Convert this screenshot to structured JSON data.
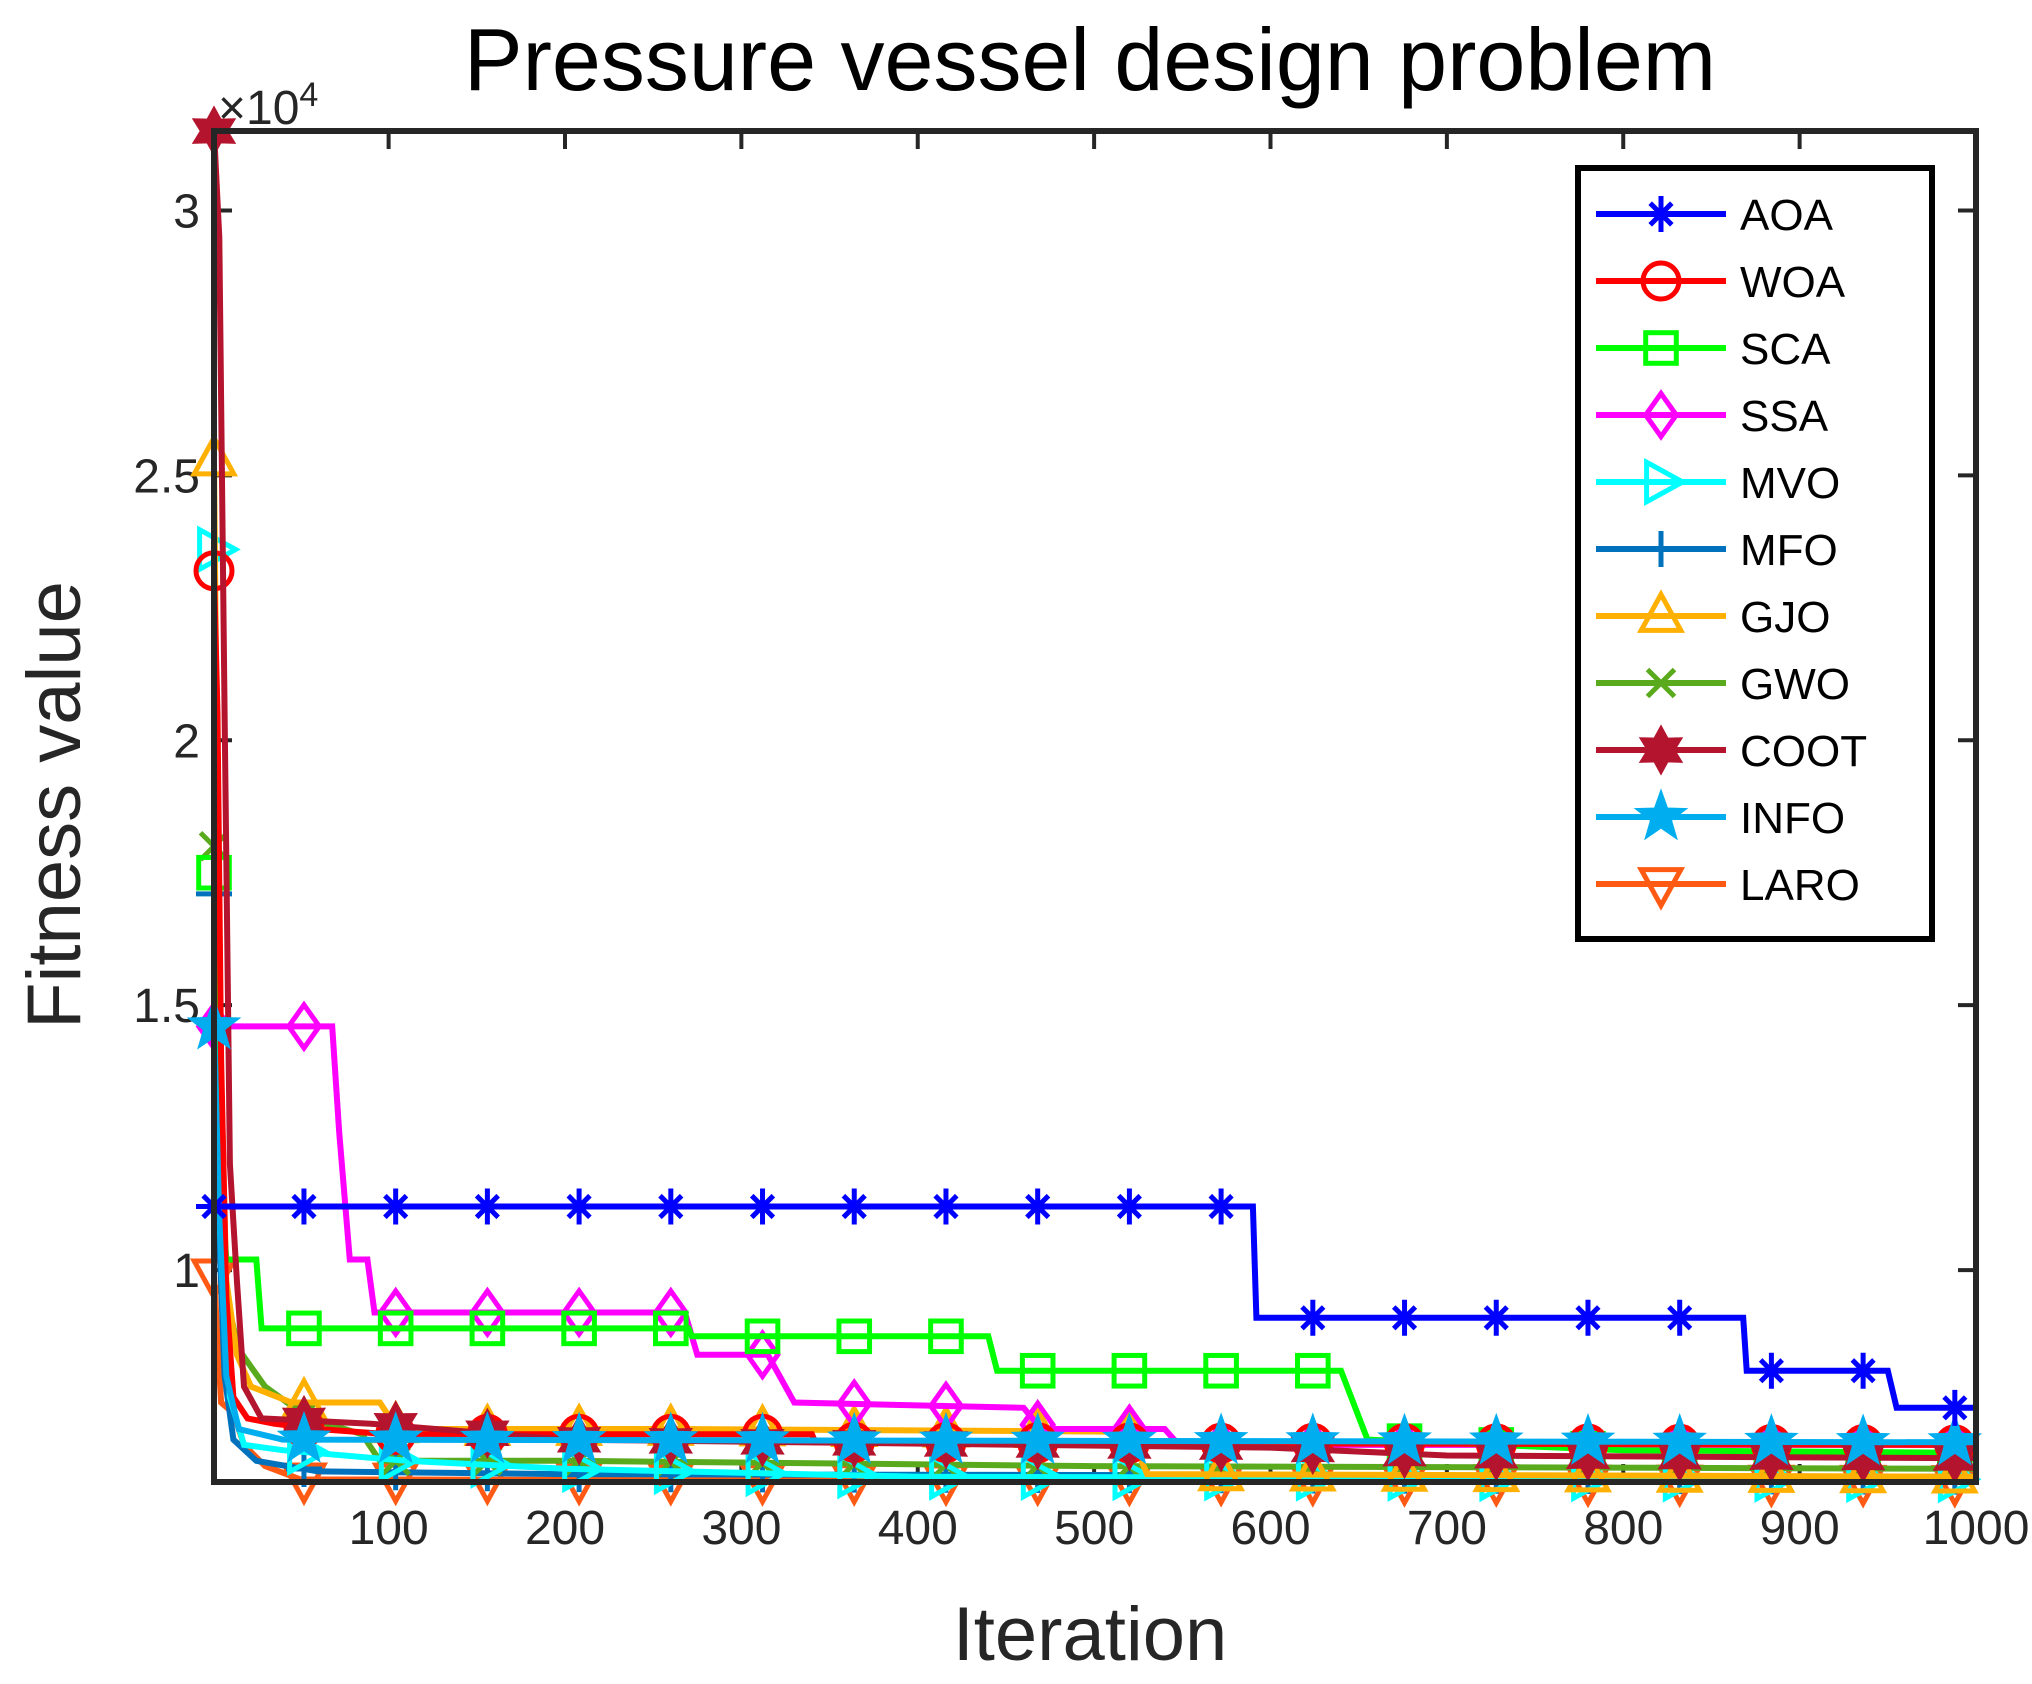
{
  "chart_data": {
    "type": "line",
    "title": "Pressure vessel design problem",
    "xlabel": "Iteration",
    "ylabel": "Fitness value",
    "xlim": [
      1,
      1000
    ],
    "ylim": [
      6000,
      31500
    ],
    "xticks": [
      100,
      200,
      300,
      400,
      500,
      600,
      700,
      800,
      900,
      1000
    ],
    "xtick_labels": [
      "100",
      "200",
      "300",
      "400",
      "500",
      "600",
      "700",
      "800",
      "900",
      "1000"
    ],
    "yticks": [
      10000,
      15000,
      20000,
      25000,
      30000
    ],
    "ytick_labels": [
      "1",
      "1.5",
      "2",
      "2.5",
      "3"
    ],
    "y_exponent_label": "×10",
    "y_exponent_power": "4",
    "legend_position": "top-right",
    "series": [
      {
        "name": "AOA",
        "color": "#0000ff",
        "marker": "asterisk",
        "points": [
          [
            1,
            11200
          ],
          [
            590,
            11200
          ],
          [
            592,
            9100
          ],
          [
            868,
            9100
          ],
          [
            870,
            8100
          ],
          [
            950,
            8100
          ],
          [
            955,
            7400
          ],
          [
            1000,
            7400
          ]
        ]
      },
      {
        "name": "WOA",
        "color": "#ff0000",
        "marker": "circle",
        "points": [
          [
            1,
            23200
          ],
          [
            3,
            20500
          ],
          [
            5,
            14000
          ],
          [
            8,
            9500
          ],
          [
            12,
            7600
          ],
          [
            20,
            7200
          ],
          [
            35,
            7100
          ],
          [
            60,
            7000
          ],
          [
            100,
            6900
          ],
          [
            340,
            6900
          ],
          [
            342,
            6750
          ],
          [
            1000,
            6700
          ]
        ]
      },
      {
        "name": "SCA",
        "color": "#00ff00",
        "marker": "square",
        "points": [
          [
            1,
            17500
          ],
          [
            4,
            12000
          ],
          [
            8,
            10200
          ],
          [
            25,
            10200
          ],
          [
            28,
            8900
          ],
          [
            270,
            8900
          ],
          [
            272,
            8750
          ],
          [
            440,
            8750
          ],
          [
            445,
            8100
          ],
          [
            640,
            8100
          ],
          [
            655,
            6800
          ],
          [
            800,
            6600
          ],
          [
            1000,
            6550
          ]
        ]
      },
      {
        "name": "SSA",
        "color": "#ff00ff",
        "marker": "diamond",
        "points": [
          [
            1,
            14600
          ],
          [
            68,
            14600
          ],
          [
            72,
            12600
          ],
          [
            78,
            10200
          ],
          [
            88,
            10200
          ],
          [
            92,
            9200
          ],
          [
            268,
            9200
          ],
          [
            275,
            8400
          ],
          [
            315,
            8400
          ],
          [
            330,
            7500
          ],
          [
            460,
            7400
          ],
          [
            470,
            7000
          ],
          [
            540,
            7000
          ],
          [
            548,
            6700
          ],
          [
            1000,
            6700
          ]
        ]
      },
      {
        "name": "MVO",
        "color": "#00ffff",
        "marker": "triangle-right",
        "points": [
          [
            1,
            23600
          ],
          [
            3,
            16000
          ],
          [
            6,
            10000
          ],
          [
            10,
            7600
          ],
          [
            18,
            6700
          ],
          [
            40,
            6600
          ],
          [
            110,
            6400
          ],
          [
            200,
            6250
          ],
          [
            400,
            6100
          ],
          [
            1000,
            6050
          ]
        ]
      },
      {
        "name": "MFO",
        "color": "#0072bd",
        "marker": "plus",
        "points": [
          [
            1,
            17100
          ],
          [
            3,
            11500
          ],
          [
            7,
            8000
          ],
          [
            12,
            6800
          ],
          [
            25,
            6400
          ],
          [
            60,
            6200
          ],
          [
            200,
            6150
          ],
          [
            1000,
            6100
          ]
        ]
      },
      {
        "name": "GJO",
        "color": "#ffb000",
        "marker": "triangle-up",
        "points": [
          [
            1,
            25300
          ],
          [
            4,
            15000
          ],
          [
            8,
            9800
          ],
          [
            14,
            8400
          ],
          [
            22,
            7800
          ],
          [
            45,
            7500
          ],
          [
            95,
            7500
          ],
          [
            105,
            7000
          ],
          [
            260,
            7000
          ],
          [
            520,
            6950
          ],
          [
            530,
            6150
          ],
          [
            1000,
            6100
          ]
        ]
      },
      {
        "name": "GWO",
        "color": "#5aaa1e",
        "marker": "x",
        "points": [
          [
            1,
            18000
          ],
          [
            4,
            12500
          ],
          [
            8,
            9500
          ],
          [
            15,
            8500
          ],
          [
            30,
            7800
          ],
          [
            55,
            7200
          ],
          [
            85,
            6900
          ],
          [
            95,
            6400
          ],
          [
            200,
            6400
          ],
          [
            500,
            6300
          ],
          [
            1000,
            6250
          ]
        ]
      },
      {
        "name": "COOT",
        "color": "#b4142d",
        "marker": "hexagram",
        "points": [
          [
            1,
            31500
          ],
          [
            4,
            29500
          ],
          [
            7,
            20500
          ],
          [
            10,
            12000
          ],
          [
            14,
            9800
          ],
          [
            18,
            7800
          ],
          [
            28,
            7200
          ],
          [
            90,
            7100
          ],
          [
            200,
            6800
          ],
          [
            600,
            6650
          ],
          [
            700,
            6500
          ],
          [
            1000,
            6450
          ]
        ]
      },
      {
        "name": "INFO",
        "color": "#00aeef",
        "marker": "pentagram",
        "points": [
          [
            1,
            14600
          ],
          [
            4,
            11000
          ],
          [
            8,
            8000
          ],
          [
            15,
            7000
          ],
          [
            40,
            6800
          ],
          [
            1000,
            6750
          ]
        ]
      },
      {
        "name": "LARO",
        "color": "#ff5a14",
        "marker": "triangle-down",
        "points": [
          [
            1,
            9900
          ],
          [
            5,
            7500
          ],
          [
            12,
            7300
          ],
          [
            18,
            6700
          ],
          [
            30,
            6300
          ],
          [
            50,
            6050
          ],
          [
            1000,
            6000
          ]
        ]
      }
    ]
  }
}
